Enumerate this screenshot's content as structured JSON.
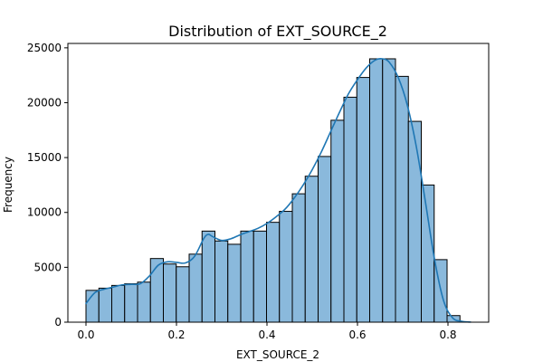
{
  "chart_data": {
    "type": "bar",
    "title": "Distribution of EXT_SOURCE_2",
    "xlabel": "EXT_SOURCE_2",
    "ylabel": "Frequency",
    "xlim": [
      -0.04,
      0.89
    ],
    "ylim": [
      0,
      25400
    ],
    "x_ticks": [
      0.0,
      0.2,
      0.4,
      0.6,
      0.8
    ],
    "x_tick_labels": [
      "0.0",
      "0.2",
      "0.4",
      "0.6",
      "0.8"
    ],
    "y_ticks": [
      0,
      5000,
      10000,
      15000,
      20000,
      25000
    ],
    "y_tick_labels": [
      "0",
      "5000",
      "10000",
      "15000",
      "20000",
      "25000"
    ],
    "bin_start": 0.0,
    "bin_width": 0.0285,
    "bins": [
      {
        "x0": 0.0,
        "x1": 0.0285,
        "count": 2900
      },
      {
        "x0": 0.0285,
        "x1": 0.057,
        "count": 3100
      },
      {
        "x0": 0.057,
        "x1": 0.0855,
        "count": 3350
      },
      {
        "x0": 0.0855,
        "x1": 0.114,
        "count": 3500
      },
      {
        "x0": 0.114,
        "x1": 0.1425,
        "count": 3650
      },
      {
        "x0": 0.1425,
        "x1": 0.171,
        "count": 5800
      },
      {
        "x0": 0.171,
        "x1": 0.1995,
        "count": 5300
      },
      {
        "x0": 0.1995,
        "x1": 0.228,
        "count": 5050
      },
      {
        "x0": 0.228,
        "x1": 0.2565,
        "count": 6200
      },
      {
        "x0": 0.2565,
        "x1": 0.285,
        "count": 8300
      },
      {
        "x0": 0.285,
        "x1": 0.3135,
        "count": 7400
      },
      {
        "x0": 0.3135,
        "x1": 0.342,
        "count": 7100
      },
      {
        "x0": 0.342,
        "x1": 0.3705,
        "count": 8300
      },
      {
        "x0": 0.3705,
        "x1": 0.399,
        "count": 8300
      },
      {
        "x0": 0.399,
        "x1": 0.4275,
        "count": 9100
      },
      {
        "x0": 0.4275,
        "x1": 0.456,
        "count": 10100
      },
      {
        "x0": 0.456,
        "x1": 0.4845,
        "count": 11700
      },
      {
        "x0": 0.4845,
        "x1": 0.513,
        "count": 13300
      },
      {
        "x0": 0.513,
        "x1": 0.5415,
        "count": 15100
      },
      {
        "x0": 0.5415,
        "x1": 0.57,
        "count": 18400
      },
      {
        "x0": 0.57,
        "x1": 0.5985,
        "count": 20500
      },
      {
        "x0": 0.5985,
        "x1": 0.627,
        "count": 22300
      },
      {
        "x0": 0.627,
        "x1": 0.6555,
        "count": 24000
      },
      {
        "x0": 0.6555,
        "x1": 0.684,
        "count": 24000
      },
      {
        "x0": 0.684,
        "x1": 0.7125,
        "count": 22400
      },
      {
        "x0": 0.7125,
        "x1": 0.741,
        "count": 18300
      },
      {
        "x0": 0.741,
        "x1": 0.7695,
        "count": 12500
      },
      {
        "x0": 0.7695,
        "x1": 0.798,
        "count": 5700
      },
      {
        "x0": 0.798,
        "x1": 0.8265,
        "count": 600
      }
    ],
    "kde": {
      "x": [
        0.0,
        0.02,
        0.04,
        0.06,
        0.08,
        0.1,
        0.12,
        0.14,
        0.16,
        0.18,
        0.2,
        0.22,
        0.24,
        0.26,
        0.27,
        0.28,
        0.3,
        0.32,
        0.34,
        0.36,
        0.38,
        0.4,
        0.42,
        0.44,
        0.46,
        0.48,
        0.5,
        0.52,
        0.54,
        0.56,
        0.58,
        0.6,
        0.62,
        0.64,
        0.655,
        0.67,
        0.69,
        0.71,
        0.73,
        0.75,
        0.77,
        0.79,
        0.81,
        0.83,
        0.85
      ],
      "y": [
        1700,
        2700,
        3000,
        3200,
        3400,
        3450,
        3500,
        4200,
        5200,
        5500,
        5450,
        5400,
        6000,
        7600,
        8000,
        7800,
        7450,
        7600,
        7950,
        8250,
        8550,
        9000,
        9600,
        10300,
        11300,
        12500,
        13900,
        15500,
        17300,
        19100,
        20800,
        22100,
        23200,
        23900,
        24000,
        23700,
        22300,
        19800,
        16000,
        11000,
        5800,
        2000,
        400,
        80,
        10
      ]
    },
    "bar_fill": "#8ab9dc",
    "bar_edge": "#000000",
    "kde_color": "#1f77b4",
    "grid": false,
    "legend": "none"
  }
}
